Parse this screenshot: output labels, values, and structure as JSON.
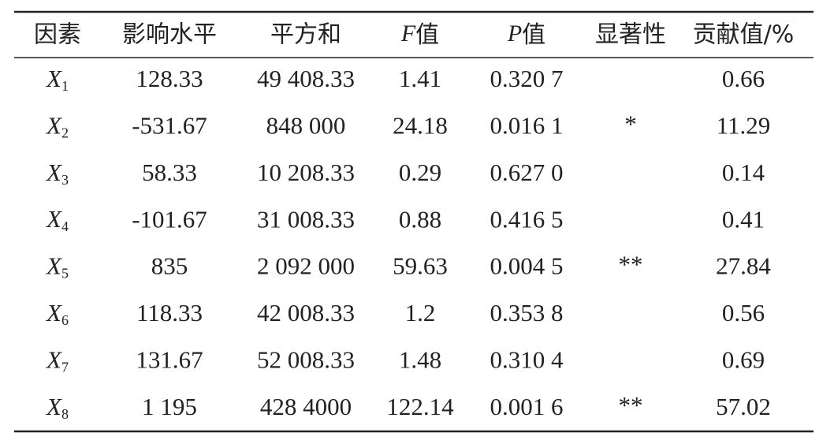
{
  "table": {
    "header": [
      "因素",
      "影响水平",
      "平方和",
      {
        "var": "F",
        "text": "值"
      },
      {
        "var": "P",
        "text": "值"
      },
      "显著性",
      "贡献值/%"
    ],
    "rows": [
      [
        {
          "base": "X",
          "sub": "1"
        },
        "128.33",
        "49 408.33",
        "1.41",
        "0.320 7",
        null,
        "0.66"
      ],
      [
        {
          "base": "X",
          "sub": "2"
        },
        "-531.67",
        "848 000",
        "24.18",
        "0.016 1",
        "*",
        "11.29"
      ],
      [
        {
          "base": "X",
          "sub": "3"
        },
        "58.33",
        "10 208.33",
        "0.29",
        "0.627 0",
        null,
        "0.14"
      ],
      [
        {
          "base": "X",
          "sub": "4"
        },
        "-101.67",
        "31 008.33",
        "0.88",
        "0.416 5",
        null,
        "0.41"
      ],
      [
        {
          "base": "X",
          "sub": "5"
        },
        "835",
        "2 092 000",
        "59.63",
        "0.004 5",
        "**",
        "27.84"
      ],
      [
        {
          "base": "X",
          "sub": "6"
        },
        "118.33",
        "42 008.33",
        "1.2",
        "0.353 8",
        null,
        "0.56"
      ],
      [
        {
          "base": "X",
          "sub": "7"
        },
        "131.67",
        "52 008.33",
        "1.48",
        "0.310 4",
        null,
        "0.69"
      ],
      [
        {
          "base": "X",
          "sub": "8"
        },
        "1 195",
        "428 4000",
        "122.14",
        "0.001 6",
        "**",
        "57.02"
      ]
    ]
  }
}
